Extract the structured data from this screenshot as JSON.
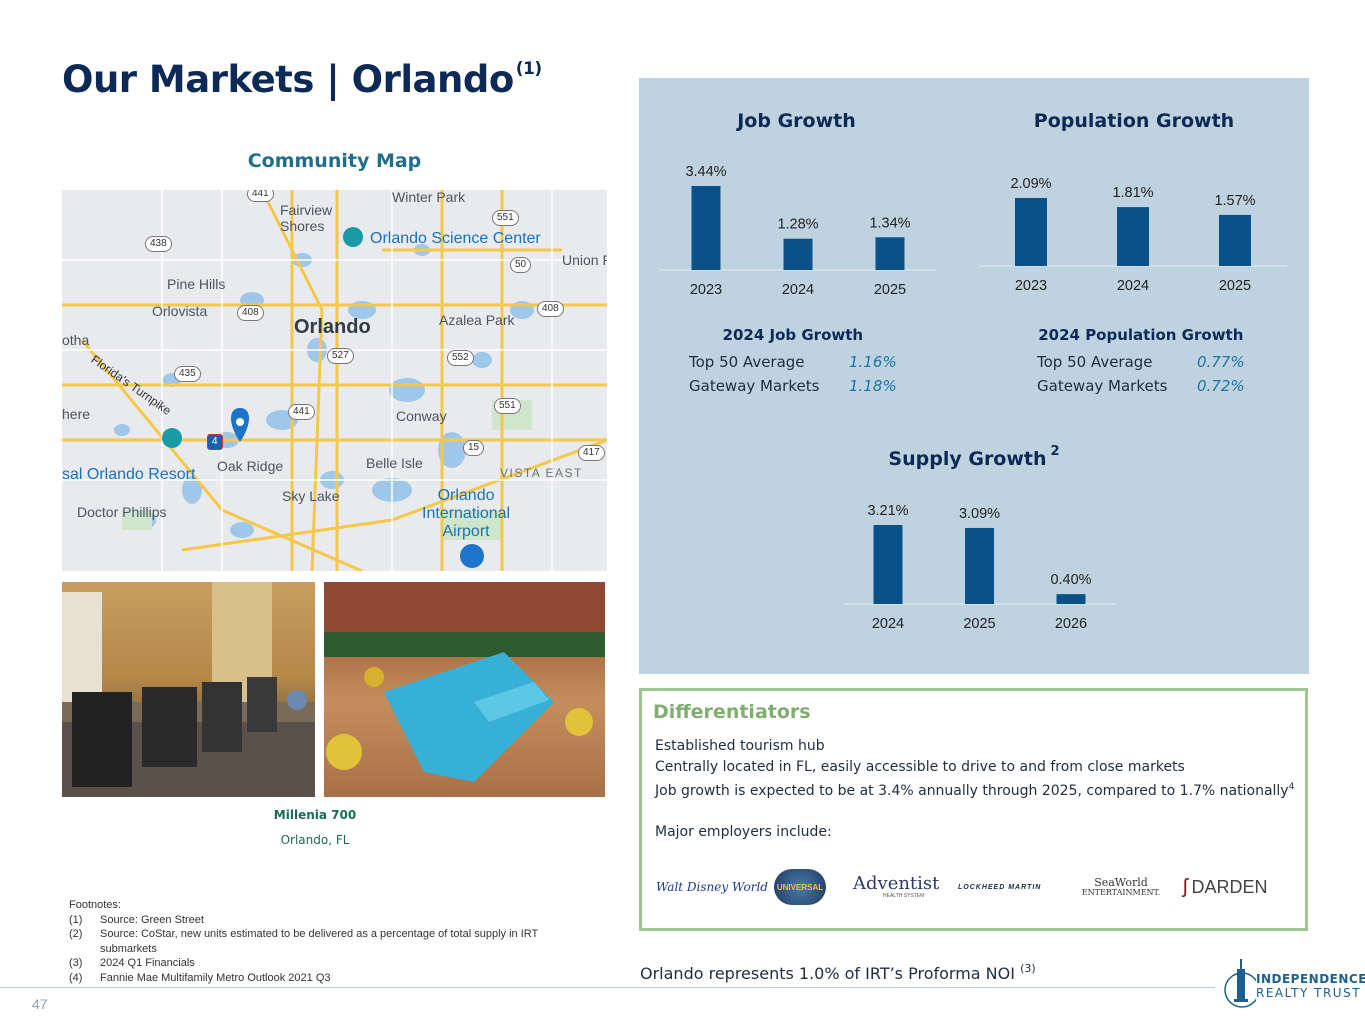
{
  "header": {
    "title": "Our Markets | Orlando",
    "title_note": "(1)"
  },
  "map": {
    "heading": "Community Map",
    "labels": {
      "winter_park": "Winter Park",
      "fairview_shores": "Fairview\nShores",
      "science_center": "Orlando Science Center",
      "union": "Union P",
      "pine_hills": "Pine Hills",
      "orlovista": "Orlovista",
      "orlando": "Orlando",
      "azalea_park": "Azalea Park",
      "otha": "otha",
      "turnpike": "Florida's Turnpike",
      "here": "here",
      "conway": "Conway",
      "universal": "sal Orlando Resort",
      "oak_ridge": "Oak Ridge",
      "belle_isle": "Belle Isle",
      "vista_east": "VISTA EAST",
      "sky_lake": "Sky Lake",
      "airport": "Orlando\nInternational\nAirport",
      "doctor_phillips": "Doctor Phillips"
    },
    "shields": [
      "441",
      "551",
      "438",
      "50",
      "408",
      "408",
      "527",
      "552",
      "435",
      "441",
      "551",
      "15",
      "417",
      "4"
    ]
  },
  "property": {
    "name": "Millenia 700",
    "location": "Orlando, FL"
  },
  "footnotes": {
    "heading": "Footnotes:",
    "items": [
      {
        "num": "(1)",
        "text": "Source: Green Street"
      },
      {
        "num": "(2)",
        "text": "Source: CoStar, new units estimated to be delivered as a percentage of total supply in IRT submarkets"
      },
      {
        "num": "(3)",
        "text": "2024 Q1 Financials"
      },
      {
        "num": "(4)",
        "text": "Fannie Mae Multifamily Metro Outlook 2021 Q3"
      }
    ]
  },
  "page_number": "47",
  "job_growth": {
    "title": "Job Growth"
  },
  "population_growth": {
    "title": "Population Growth"
  },
  "supply_growth": {
    "title": "Supply Growth",
    "title_note": "2"
  },
  "job_stats": {
    "title": "2024 Job Growth",
    "rows": [
      {
        "label": "Top 50 Average",
        "value": "1.16%"
      },
      {
        "label": "Gateway Markets",
        "value": "1.18%"
      }
    ]
  },
  "population_stats": {
    "title": "2024 Population Growth",
    "rows": [
      {
        "label": "Top 50 Average",
        "value": "0.77%"
      },
      {
        "label": "Gateway Markets",
        "value": "0.72%"
      }
    ]
  },
  "chart_data": [
    {
      "type": "bar",
      "title": "Job Growth",
      "categories": [
        "2023",
        "2024",
        "2025"
      ],
      "values": [
        3.44,
        1.28,
        1.34
      ],
      "labels": [
        "3.44%",
        "1.28%",
        "1.34%"
      ],
      "color": "#0a5189",
      "grid": false
    },
    {
      "type": "bar",
      "title": "Population Growth",
      "categories": [
        "2023",
        "2024",
        "2025"
      ],
      "values": [
        2.09,
        1.81,
        1.57
      ],
      "labels": [
        "2.09%",
        "1.81%",
        "1.57%"
      ],
      "color": "#0a5189",
      "grid": false
    },
    {
      "type": "bar",
      "title": "Supply Growth",
      "categories": [
        "2024",
        "2025",
        "2026"
      ],
      "values": [
        3.21,
        3.09,
        0.4
      ],
      "labels": [
        "3.21%",
        "3.09%",
        "0.40%"
      ],
      "color": "#0a5189",
      "grid": false
    }
  ],
  "differentiators": {
    "title": "Differentiators",
    "lines": [
      "Established tourism hub",
      "Centrally located in FL, easily accessible to drive to and from close markets",
      "Job growth is expected to be at 3.4% annually through 2025, compared to 1.7% nationally"
    ],
    "line3_note": "4",
    "employers_label": "Major employers include:",
    "logos": {
      "disney": "Walt Disney World",
      "universal": "UNIVERSAL",
      "adventist": "Adventist",
      "adventist_sub": "HEALTH SYSTEM",
      "lockheed": "LOCKHEED MARTIN",
      "seaworld": "SeaWorld",
      "seaworld_sub": "ENTERTAINMENT.",
      "darden": "DARDEN"
    }
  },
  "noi": {
    "text": "Orlando represents 1.0% of IRT’s Proforma NOI",
    "note": "(3)"
  },
  "brand": {
    "line1": "INDEPENDENCE",
    "line2": "REALTY TRUST"
  }
}
